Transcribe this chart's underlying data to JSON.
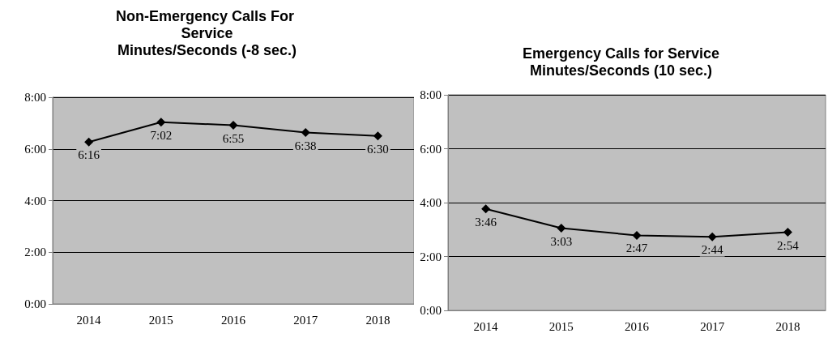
{
  "chart_data": [
    {
      "type": "line",
      "title": "Non-Emergency Calls For Service\nMinutes/Seconds (-8 sec.)",
      "categories": [
        "2014",
        "2015",
        "2016",
        "2017",
        "2018"
      ],
      "series": [
        {
          "color": "#000000",
          "values": [
            6.267,
            7.033,
            6.917,
            6.633,
            6.5
          ],
          "value_labels": [
            "6:16",
            "7:02",
            "6:55",
            "6:38",
            "6:30"
          ]
        }
      ],
      "ylim": [
        0,
        8
      ],
      "yticks": [
        {
          "value": 0,
          "label": "0:00"
        },
        {
          "value": 2,
          "label": "2:00"
        },
        {
          "value": 4,
          "label": "4:00"
        },
        {
          "value": 6,
          "label": "6:00"
        },
        {
          "value": 8,
          "label": "8:00"
        }
      ],
      "grid": "y",
      "marker": "diamond",
      "line_style": "solid"
    },
    {
      "type": "line",
      "title": "Emergency Calls for Service\nMinutes/Seconds (10 sec.)",
      "categories": [
        "2014",
        "2015",
        "2016",
        "2017",
        "2018"
      ],
      "series": [
        {
          "color": "#000000",
          "values": [
            3.767,
            3.05,
            2.783,
            2.733,
            2.9
          ],
          "value_labels": [
            "3:46",
            "3:03",
            "2:47",
            "2:44",
            "2:54"
          ]
        }
      ],
      "ylim": [
        0,
        8
      ],
      "yticks": [
        {
          "value": 0,
          "label": "0:00"
        },
        {
          "value": 2,
          "label": "2:00"
        },
        {
          "value": 4,
          "label": "4:00"
        },
        {
          "value": 6,
          "label": "6:00"
        },
        {
          "value": 8,
          "label": "8:00"
        }
      ],
      "grid": "y",
      "marker": "diamond",
      "line_style": "solid"
    }
  ]
}
